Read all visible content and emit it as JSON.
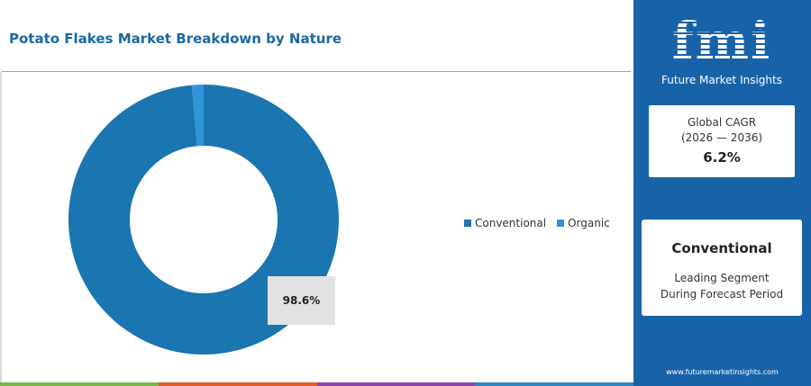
{
  "header": {
    "title": "Potato Flakes Market Breakdown by Nature"
  },
  "chart_data": {
    "type": "pie",
    "variant": "donut",
    "title": "Potato Flakes Market Breakdown by Nature",
    "categories": [
      "Conventional",
      "Organic"
    ],
    "values": [
      98.6,
      1.4
    ],
    "unit": "%",
    "colors": [
      "#1b75b0",
      "#2e95d8"
    ],
    "data_labels": [
      {
        "category": "Conventional",
        "text": "98.6%"
      }
    ],
    "legend": {
      "position": "right",
      "entries": [
        "Conventional",
        "Organic"
      ]
    }
  },
  "sidebar": {
    "logo_text": "fmi",
    "logo_subtitle": "Future Market Insights",
    "cagr": {
      "label": "Global CAGR",
      "period": "(2026 — 2036)",
      "value": "6.2%"
    },
    "leading_segment": {
      "name": "Conventional",
      "line1": "Leading Segment",
      "line2": "During Forecast Period"
    },
    "website": "www.futuremarketinsights.com"
  },
  "colors": {
    "sidebar_bg": "#1863a8",
    "title": "#1b69a5",
    "bottom_bar": [
      "#7ab648",
      "#e35d2b",
      "#8e44ad",
      "#2e86c1"
    ]
  }
}
